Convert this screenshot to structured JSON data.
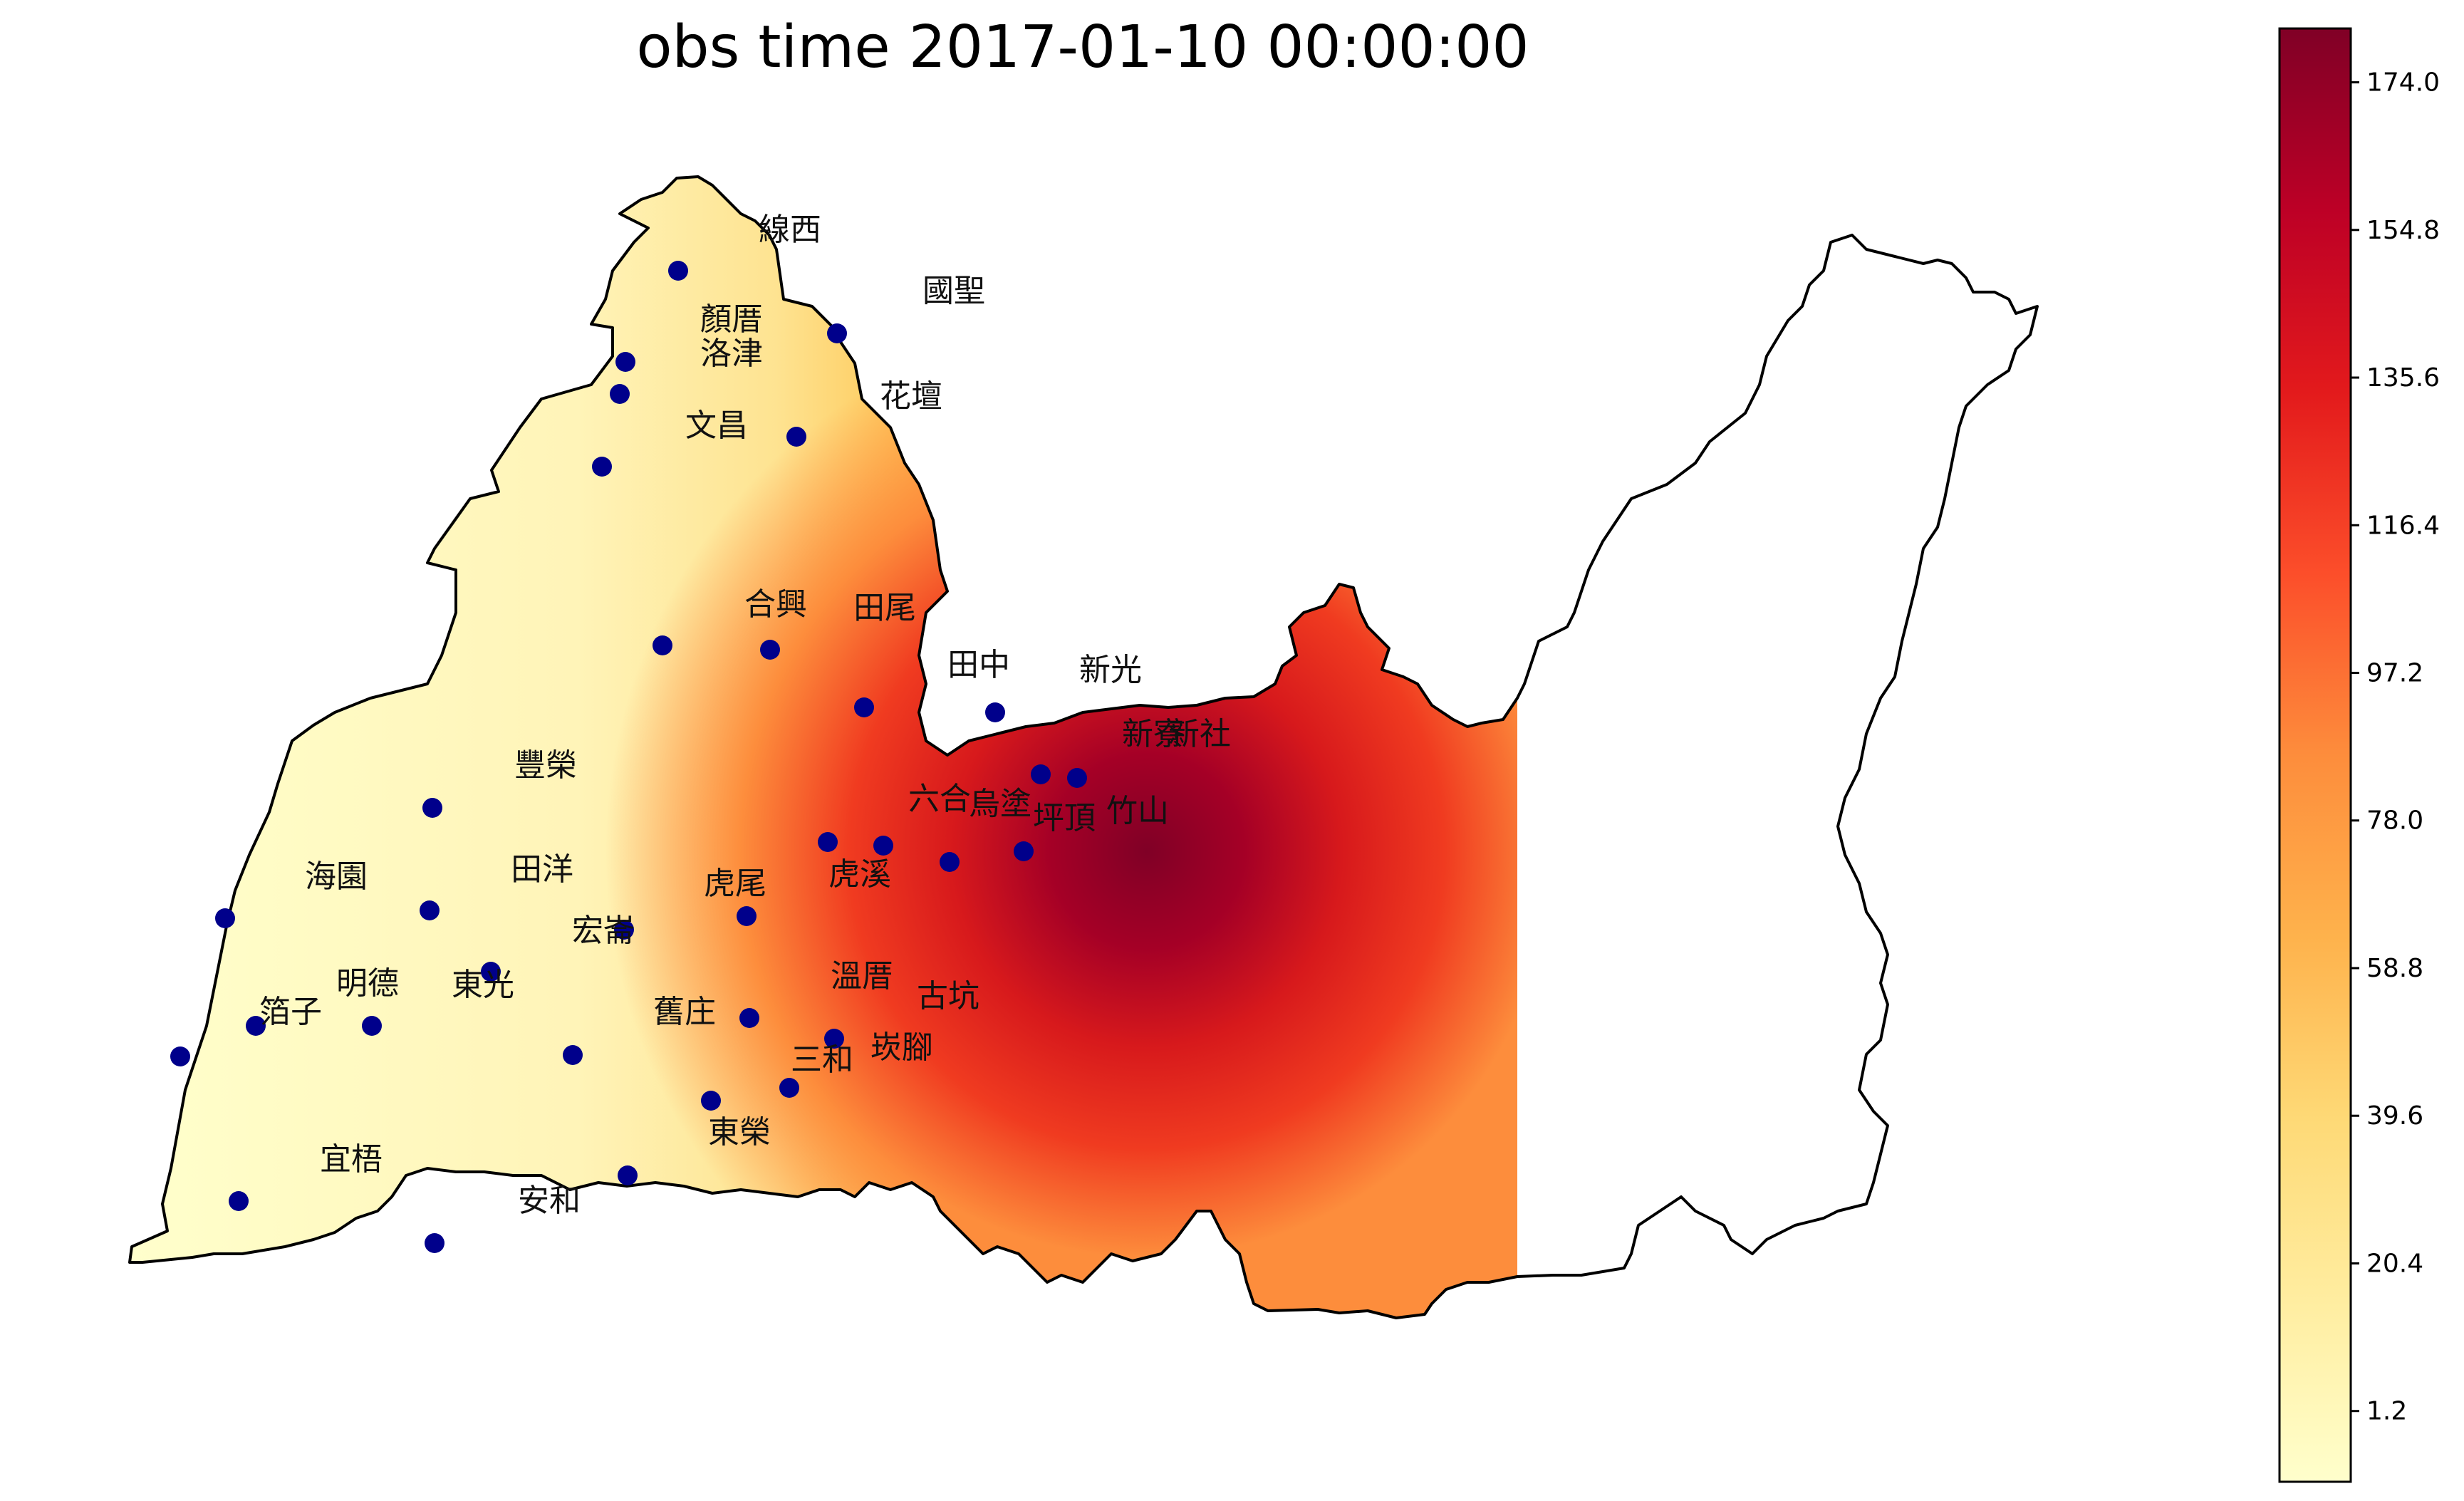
{
  "title": "obs time 2017-01-10 00:00:00",
  "colorbar": {
    "ticks": [
      "1.2",
      "20.4",
      "39.6",
      "58.8",
      "78.0",
      "97.2",
      "116.4",
      "135.6",
      "154.8",
      "174.0"
    ],
    "tick_values": [
      1.2,
      20.4,
      39.6,
      58.8,
      78.0,
      97.2,
      116.4,
      135.6,
      154.8,
      174.0
    ],
    "range": [
      -8,
      181
    ],
    "colormap": "YlOrRd",
    "stops": [
      "#ffffcc",
      "#ffeda0",
      "#fed976",
      "#feb24c",
      "#fd8d3c",
      "#fc4e2a",
      "#e31a1c",
      "#bd0026",
      "#800026"
    ]
  },
  "station_labels": [
    "線西",
    "國聖",
    "顏厝",
    "洛津",
    "花壇",
    "文昌",
    "合興",
    "田尾",
    "田中",
    "新光",
    "新寮",
    "新社",
    "豐榮",
    "六合",
    "烏塗",
    "坪頂",
    "竹山",
    "海園",
    "田洋",
    "虎尾",
    "虎溪",
    "宏崙",
    "明德",
    "東光",
    "溫厝",
    "古坑",
    "箔子",
    "舊庄",
    "崁腳",
    "三和",
    "東榮",
    "宜梧",
    "安和"
  ],
  "station_marker_color": "#00008b",
  "boundary_color": "#000000"
}
